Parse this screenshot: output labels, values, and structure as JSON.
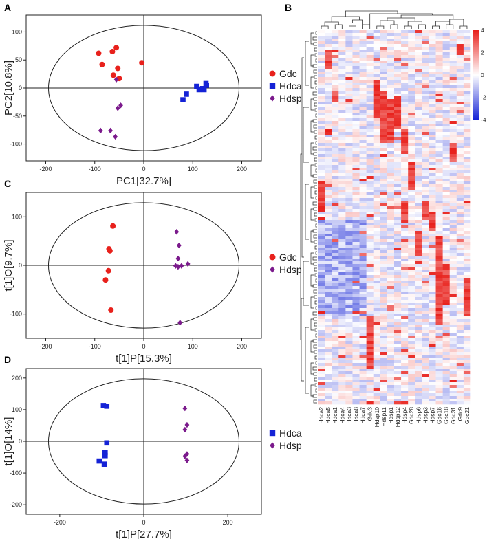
{
  "colors": {
    "Gdc": "#e8211c",
    "Hdca": "#1422d6",
    "Hdsp": "#7b1a8c",
    "heat_high": "#e8211c",
    "heat_mid": "#ffffff",
    "heat_low": "#1422d6"
  },
  "chart_data": [
    {
      "panel": "A",
      "type": "scatter",
      "xlabel": "PC1[32.7%]",
      "ylabel": "PC2[10.8%]",
      "xlim": [
        -240,
        240
      ],
      "ylim": [
        -130,
        130
      ],
      "xticks": [
        -200,
        -100,
        0,
        100,
        200
      ],
      "yticks": [
        -100,
        -50,
        0,
        50,
        100
      ],
      "legend_position": "right",
      "series": [
        {
          "name": "Gdc",
          "marker": "circle",
          "x": [
            -92,
            -85,
            -64,
            -56,
            -53,
            -62,
            -50,
            -4
          ],
          "y": [
            62,
            42,
            65,
            72,
            35,
            23,
            17,
            45
          ]
        },
        {
          "name": "Hdca",
          "marker": "square",
          "x": [
            80,
            87,
            108,
            113,
            120,
            123,
            127,
            128
          ],
          "y": [
            -21,
            -11,
            3,
            -3,
            -1,
            -3,
            8,
            5
          ]
        },
        {
          "name": "Hdsp",
          "marker": "diamond",
          "x": [
            -56,
            -88,
            -68,
            -58,
            -53,
            -47
          ],
          "y": [
            15,
            -76,
            -76,
            -87,
            -36,
            -31
          ]
        }
      ]
    },
    {
      "panel": "C",
      "type": "scatter",
      "xlabel": "t[1]P[15.3%]",
      "ylabel": "t[1]O[9.7%]",
      "xlim": [
        -240,
        240
      ],
      "ylim": [
        -150,
        150
      ],
      "xticks": [
        -200,
        -100,
        0,
        100,
        200
      ],
      "yticks": [
        -100,
        0,
        100
      ],
      "legend_position": "right",
      "series": [
        {
          "name": "Gdc",
          "marker": "circle",
          "x": [
            -63,
            -71,
            -69,
            -72,
            -78,
            -67
          ],
          "y": [
            81,
            34,
            30,
            -11,
            -30,
            -92
          ]
        },
        {
          "name": "Hdsp",
          "marker": "diamond",
          "x": [
            67,
            72,
            70,
            65,
            70,
            77,
            90,
            74
          ],
          "y": [
            69,
            41,
            14,
            -1,
            -3,
            -1,
            3,
            -118
          ]
        }
      ]
    },
    {
      "panel": "D",
      "type": "scatter",
      "xlabel": "t[1]P[27.7%]",
      "ylabel": "t[1]O[14%]",
      "xlim": [
        -280,
        280
      ],
      "ylim": [
        -230,
        230
      ],
      "xticks": [
        -200,
        0,
        200
      ],
      "yticks": [
        -200,
        -100,
        0,
        100,
        200
      ],
      "legend_position": "right",
      "series": [
        {
          "name": "Hdca",
          "marker": "square",
          "x": [
            -96,
            -88,
            -88,
            -92,
            -92,
            -106,
            -94
          ],
          "y": [
            113,
            111,
            -5,
            -35,
            -45,
            -62,
            -72
          ]
        },
        {
          "name": "Hdsp",
          "marker": "diamond",
          "x": [
            98,
            103,
            98,
            103,
            98,
            103
          ],
          "y": [
            104,
            52,
            37,
            -40,
            -47,
            -60
          ]
        }
      ]
    },
    {
      "panel": "B",
      "type": "heatmap",
      "legend_ticks": [
        4,
        2,
        0,
        -2,
        -4
      ],
      "scale_range": [
        -4,
        4
      ],
      "columns": [
        "Hdca2",
        "Hdca5",
        "Hdca1",
        "Hdca4",
        "Hdca3",
        "Hdca8",
        "Hdca7",
        "Gdc3",
        "Hdsp10",
        "Hdsp11",
        "Hdsp1",
        "Hdsp12",
        "Hdsp4",
        "Gdc28",
        "Hdsp6",
        "Hdsp3",
        "Hdsp7",
        "Gdc16",
        "Gdc18",
        "Gdc31",
        "Gdc9",
        "Gdc21"
      ]
    }
  ],
  "panel_labels": {
    "A": "A",
    "B": "B",
    "C": "C",
    "D": "D"
  }
}
